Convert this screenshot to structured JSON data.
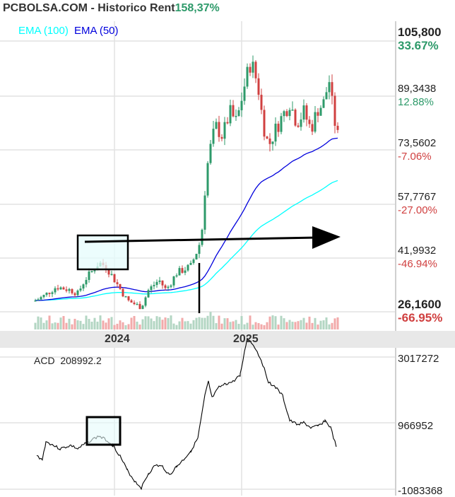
{
  "header": {
    "title": "PCBOLSA.COM - Historico  Rent",
    "rent_value": "158,37%"
  },
  "legend": {
    "ema100": "EMA (100)",
    "ema50": "EMA (50)",
    "ema100_color": "#00ffff",
    "ema50_color": "#0000dd"
  },
  "price_axis": [
    {
      "value": "105,800",
      "pct": "33.67%",
      "dir": "up"
    },
    {
      "value": "89,3438",
      "pct": "12.88%",
      "dir": "up"
    },
    {
      "value": "73,5602",
      "pct": "-7.06%",
      "dir": "dn"
    },
    {
      "value": "57,7767",
      "pct": "-27.00%",
      "dir": "dn"
    },
    {
      "value": "41,9932",
      "pct": "-46.94%",
      "dir": "dn"
    },
    {
      "value": "26,1600",
      "pct": "-66.95%",
      "dir": "dn"
    }
  ],
  "time_axis": [
    "2024",
    "2025"
  ],
  "acd": {
    "label": "ACD",
    "value": "208992.2",
    "axis": [
      "3017272",
      "966952",
      "-1083368"
    ]
  },
  "colors": {
    "up": "#2e9a6a",
    "down": "#d04040",
    "vol_up": "#b3d6c3",
    "vol_down": "#f2aaaa",
    "annotation_fill": "#e6fcfc"
  },
  "chart_data": [
    {
      "type": "candlestick",
      "xlabel": "",
      "ylabel": "",
      "ylim": [
        26.16,
        105.8
      ],
      "xticks": [
        "2024",
        "2025"
      ],
      "grid": true,
      "legend": "top-left",
      "series": [
        {
          "name": "EMA (100)"
        },
        {
          "name": "EMA (50)"
        }
      ],
      "close_approx": [
        [
          2023.378,
          30
        ],
        [
          2023.433,
          31
        ],
        [
          2023.544,
          34
        ],
        [
          2023.656,
          33
        ],
        [
          2023.711,
          32
        ],
        [
          2023.767,
          36
        ],
        [
          2023.878,
          41
        ],
        [
          2023.933,
          40
        ],
        [
          2024.017,
          35
        ],
        [
          2024.1,
          30
        ],
        [
          2024.211,
          28
        ],
        [
          2024.267,
          33
        ],
        [
          2024.35,
          36
        ],
        [
          2024.406,
          33
        ],
        [
          2024.489,
          38
        ],
        [
          2024.6,
          40
        ],
        [
          2024.644,
          44
        ],
        [
          2024.683,
          48
        ],
        [
          2024.711,
          62
        ],
        [
          2024.739,
          72
        ],
        [
          2024.794,
          81
        ],
        [
          2024.85,
          78
        ],
        [
          2024.906,
          85
        ],
        [
          2024.961,
          82
        ],
        [
          2025.017,
          92
        ],
        [
          2025.072,
          100
        ],
        [
          2025.128,
          93
        ],
        [
          2025.167,
          82
        ],
        [
          2025.211,
          75
        ],
        [
          2025.267,
          80
        ],
        [
          2025.322,
          84
        ],
        [
          2025.378,
          88
        ],
        [
          2025.433,
          82
        ],
        [
          2025.489,
          85
        ],
        [
          2025.544,
          80
        ],
        [
          2025.6,
          86
        ],
        [
          2025.656,
          88
        ],
        [
          2025.683,
          96
        ],
        [
          2025.722,
          84
        ],
        [
          2025.756,
          78
        ]
      ]
    },
    {
      "type": "line",
      "name": "ACD",
      "ylim": [
        -1083368,
        3017272
      ],
      "points": [
        [
          2023.389,
          -168000
        ],
        [
          2023.433,
          -263000
        ],
        [
          2023.461,
          214000
        ],
        [
          2023.5,
          156000
        ],
        [
          2023.572,
          23000
        ],
        [
          2023.656,
          118000
        ],
        [
          2023.711,
          23000
        ],
        [
          2023.767,
          156000
        ],
        [
          2023.822,
          271000
        ],
        [
          2023.878,
          366000
        ],
        [
          2023.933,
          271000
        ],
        [
          2023.989,
          118000
        ],
        [
          2024.044,
          -168000
        ],
        [
          2024.1,
          -550000
        ],
        [
          2024.156,
          -836000
        ],
        [
          2024.211,
          -1026000
        ],
        [
          2024.267,
          -645000
        ],
        [
          2024.322,
          -416000
        ],
        [
          2024.378,
          -454000
        ],
        [
          2024.433,
          -683000
        ],
        [
          2024.489,
          -454000
        ],
        [
          2024.544,
          -263000
        ],
        [
          2024.6,
          -35000
        ],
        [
          2024.656,
          309000
        ],
        [
          2024.711,
          1453000
        ],
        [
          2024.739,
          1835000
        ],
        [
          2024.767,
          1396000
        ],
        [
          2024.822,
          1682000
        ],
        [
          2024.878,
          1778000
        ],
        [
          2024.933,
          1835000
        ],
        [
          2024.989,
          2025000
        ],
        [
          2025.044,
          3017000
        ],
        [
          2025.1,
          2788000
        ],
        [
          2025.156,
          2407000
        ],
        [
          2025.211,
          1835000
        ],
        [
          2025.267,
          1682000
        ],
        [
          2025.322,
          1453000
        ],
        [
          2025.378,
          786000
        ],
        [
          2025.433,
          690000
        ],
        [
          2025.489,
          728000
        ],
        [
          2025.544,
          595000
        ],
        [
          2025.6,
          633000
        ],
        [
          2025.656,
          786000
        ],
        [
          2025.7,
          595000
        ],
        [
          2025.744,
          80000
        ]
      ]
    }
  ]
}
